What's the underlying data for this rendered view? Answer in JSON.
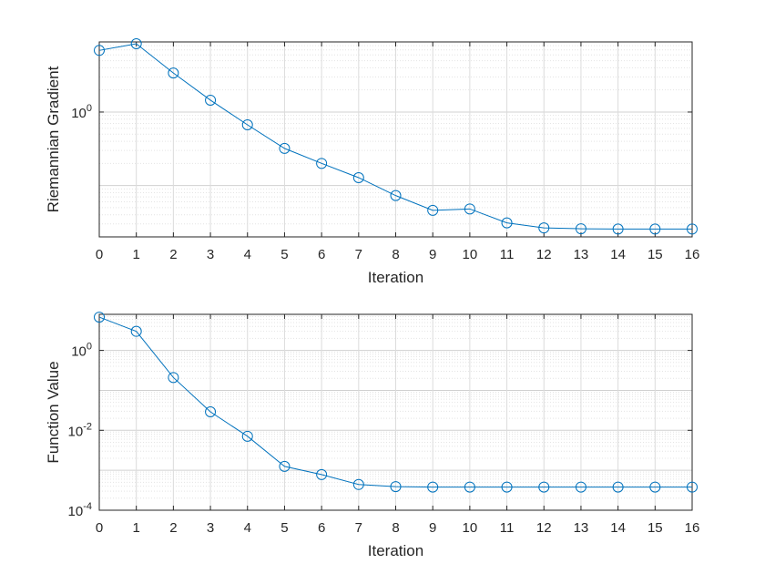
{
  "colors": {
    "series": "#0072BD",
    "axis": "#262626",
    "grid": "#dcdcdc",
    "background": "#ffffff"
  },
  "chart_data": [
    {
      "type": "line",
      "marker": "circle",
      "xlabel": "Iteration",
      "ylabel": "Riemannian Gradient",
      "yscale": "log",
      "grid": true,
      "xlim": [
        0,
        16
      ],
      "ylim": [
        0.02,
        9
      ],
      "x_ticks": [
        "0",
        "1",
        "2",
        "3",
        "4",
        "5",
        "6",
        "7",
        "8",
        "9",
        "10",
        "11",
        "12",
        "13",
        "14",
        "15",
        "16"
      ],
      "y_ticks": [
        {
          "base": "10",
          "exp": "0",
          "value": 1
        }
      ],
      "x": [
        0,
        1,
        2,
        3,
        4,
        5,
        6,
        7,
        8,
        9,
        10,
        11,
        12,
        13,
        14,
        15,
        16
      ],
      "series": [
        {
          "values": [
            6.9,
            8.5,
            3.4,
            1.45,
            0.67,
            0.32,
            0.2,
            0.128,
            0.073,
            0.046,
            0.048,
            0.031,
            0.0265,
            0.0258,
            0.0256,
            0.0256,
            0.0256
          ]
        }
      ]
    },
    {
      "type": "line",
      "marker": "circle",
      "xlabel": "Iteration",
      "ylabel": "Function Value",
      "yscale": "log",
      "grid": true,
      "xlim": [
        0,
        16
      ],
      "ylim": [
        0.0001,
        8
      ],
      "x_ticks": [
        "0",
        "1",
        "2",
        "3",
        "4",
        "5",
        "6",
        "7",
        "8",
        "9",
        "10",
        "11",
        "12",
        "13",
        "14",
        "15",
        "16"
      ],
      "y_ticks": [
        {
          "base": "10",
          "exp": "0",
          "value": 1
        },
        {
          "base": "10",
          "exp": "-2",
          "value": 0.01
        },
        {
          "base": "10",
          "exp": "-4",
          "value": 0.0001
        }
      ],
      "x": [
        0,
        1,
        2,
        3,
        4,
        5,
        6,
        7,
        8,
        9,
        10,
        11,
        12,
        13,
        14,
        15,
        16
      ],
      "series": [
        {
          "values": [
            6.8,
            3.0,
            0.21,
            0.029,
            0.0071,
            0.00125,
            0.00078,
            0.00044,
            0.00039,
            0.00038,
            0.00038,
            0.00038,
            0.00038,
            0.00038,
            0.00038,
            0.00038,
            0.00038
          ]
        }
      ]
    }
  ]
}
